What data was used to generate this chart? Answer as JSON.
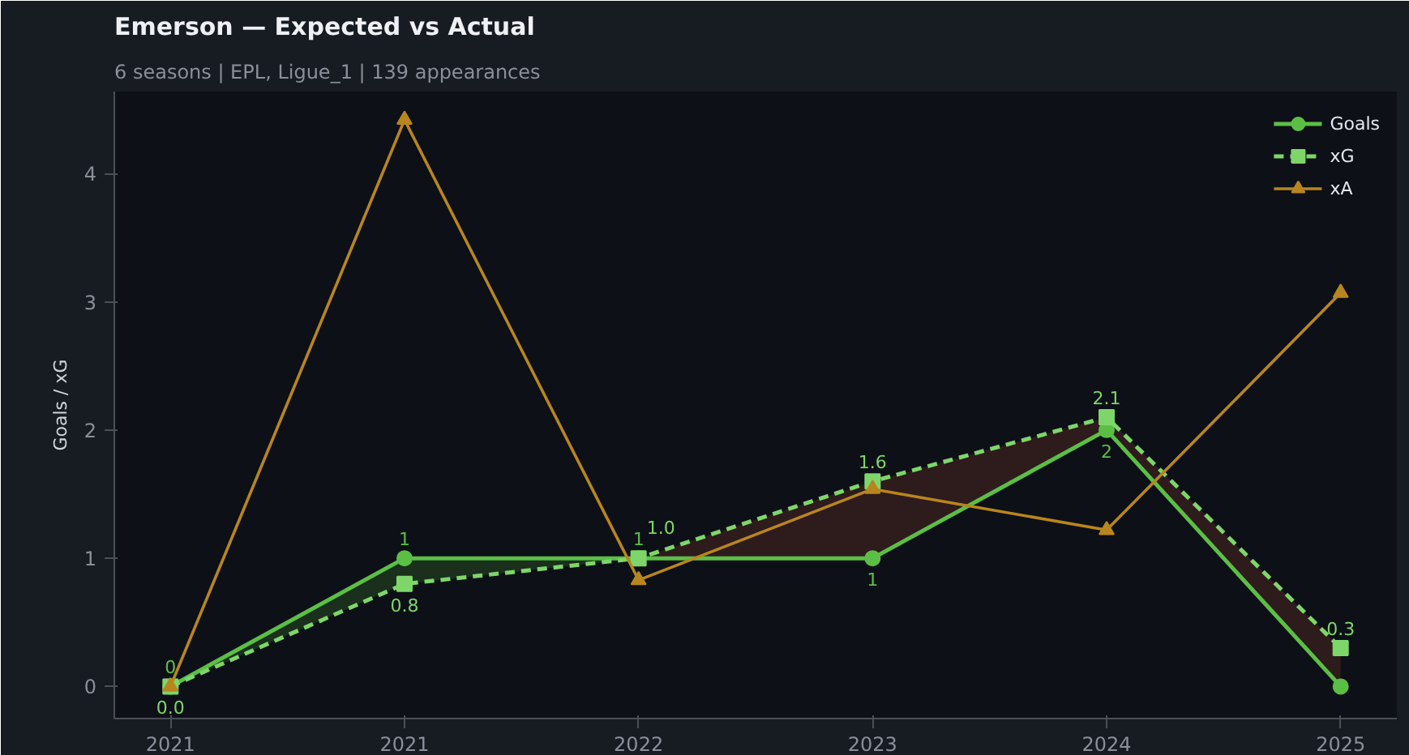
{
  "chart_data": {
    "type": "line",
    "title": "Emerson — Expected vs Actual",
    "subtitle": "6 seasons | EPL, Ligue_1 | 139 appearances",
    "ylabel": "Goals / xG",
    "categories": [
      "2021",
      "2021",
      "2022",
      "2023",
      "2024",
      "2025"
    ],
    "series": [
      {
        "name": "Goals",
        "color": "#5bbf45",
        "values": [
          0,
          1,
          1,
          1,
          2,
          0
        ],
        "lower": [
          0,
          0.8,
          1,
          null,
          null,
          null
        ],
        "upper": [
          0,
          1,
          1,
          null,
          null,
          null
        ],
        "marker": "circle",
        "line_style": "solid",
        "value_labels": [
          "0",
          "1",
          "1",
          "1",
          "2",
          null
        ]
      },
      {
        "name": "xG",
        "color": "#7ed66a",
        "values": [
          0.0,
          0.8,
          1.0,
          1.6,
          2.1,
          0.3
        ],
        "lower": [
          null,
          null,
          1,
          1,
          2,
          0
        ],
        "upper": [
          null,
          null,
          1.0,
          1.6,
          2.1,
          0.3
        ],
        "marker": "square",
        "line_style": "dashed",
        "value_labels": [
          "0.0",
          "0.8",
          "1.0",
          "1.6",
          "2.1",
          "0.3"
        ]
      },
      {
        "name": "xA",
        "color": "#b8861e",
        "values": [
          0,
          4.42,
          0.83,
          1.54,
          1.22,
          3.07
        ],
        "marker": "triangle",
        "line_style": "solid"
      }
    ],
    "ylim": [
      -0.25,
      4.64
    ],
    "yticks": [
      0,
      1,
      2,
      3,
      4
    ],
    "grid": false,
    "legend": "top right"
  }
}
